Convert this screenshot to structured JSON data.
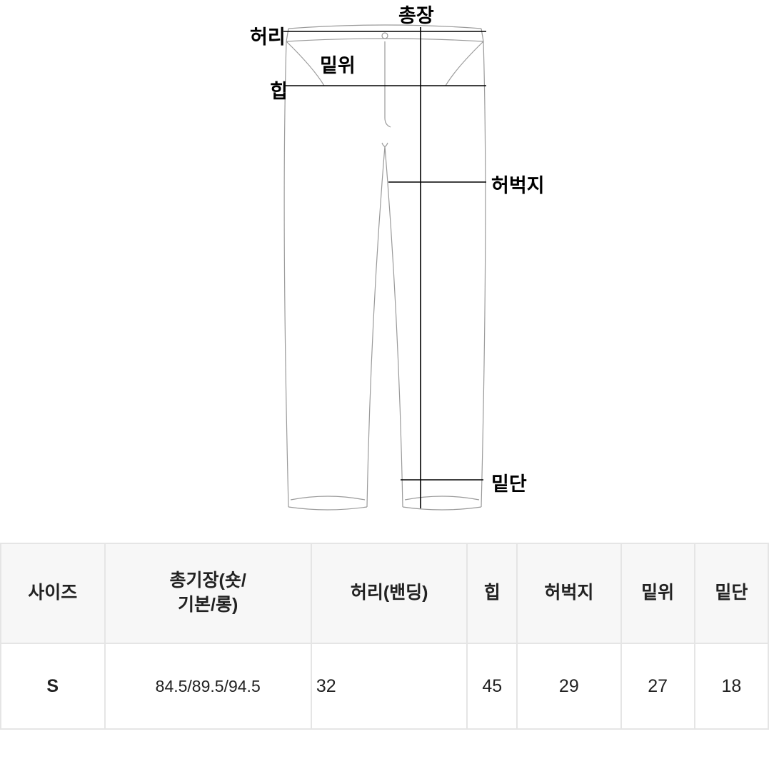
{
  "diagram": {
    "labels": {
      "total_length": "총장",
      "waist": "허리",
      "rise": "밑위",
      "hip": "힙",
      "thigh": "허벅지",
      "hem": "밑단"
    },
    "stroke_color": "#9a9a9a",
    "measure_color": "#000000",
    "stroke_width": 1.2,
    "label_fontsize": 27,
    "label_font_weight": 700
  },
  "table": {
    "columns": [
      "사이즈",
      "총기장(숏/기본/롱)",
      "허리(밴딩)",
      "힙",
      "허벅지",
      "밑위",
      "밑단"
    ],
    "column_multiline": [
      "사이즈",
      "총기장(숏/\n기본/롱)",
      "허리(밴딩)",
      "힙",
      "허벅지",
      "밑위",
      "밑단"
    ],
    "rows": [
      {
        "size": "S",
        "total": "84.5/89.5/94.5",
        "waist": "32",
        "hip": "45",
        "thigh": "29",
        "rise": "27",
        "hem": "18"
      }
    ],
    "header_bg": "#f7f7f7",
    "border_color": "#e5e5e5",
    "font_size": 25
  }
}
